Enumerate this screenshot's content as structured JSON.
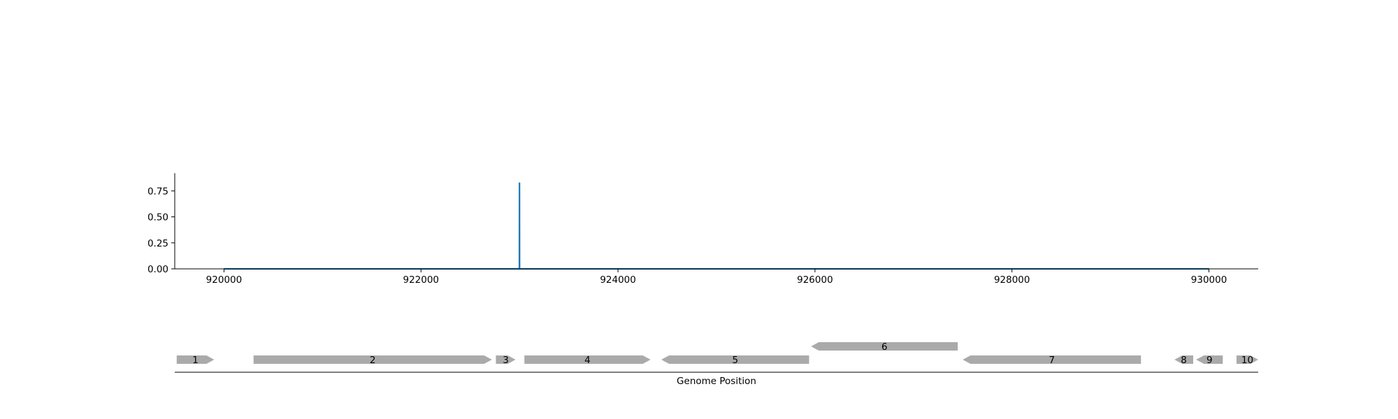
{
  "chart_data": [
    {
      "type": "line",
      "title": "",
      "xlabel": "",
      "ylabel": "",
      "xlim": [
        919500,
        930500
      ],
      "ylim": [
        0,
        0.92
      ],
      "x_ticks": [
        920000,
        922000,
        924000,
        926000,
        928000,
        930000
      ],
      "y_ticks": [
        0.0,
        0.25,
        0.5,
        0.75
      ],
      "y_tick_labels": [
        "0.00",
        "0.25",
        "0.50",
        "0.75"
      ],
      "x_tick_labels": [
        "920000",
        "922000",
        "924000",
        "926000",
        "928000",
        "930000"
      ],
      "grid": false,
      "color": "#1f77b4",
      "series": [
        {
          "x": [
            920000,
            922999,
            923000,
            923001,
            930000
          ],
          "y": [
            0,
            0,
            0.83,
            0,
            0
          ]
        }
      ]
    },
    {
      "type": "gene-track",
      "xlabel": "Genome Position",
      "xlim": [
        919500,
        930500
      ],
      "color": "#aaaaaa",
      "genes": [
        {
          "label": "1",
          "start": 919520,
          "end": 919900,
          "strand": "+",
          "row": 0
        },
        {
          "label": "2",
          "start": 920300,
          "end": 922720,
          "strand": "+",
          "row": 0
        },
        {
          "label": "3",
          "start": 922760,
          "end": 922960,
          "strand": "+",
          "row": 0
        },
        {
          "label": "4",
          "start": 923050,
          "end": 924330,
          "strand": "+",
          "row": 0
        },
        {
          "label": "5",
          "start": 924440,
          "end": 925940,
          "strand": "-",
          "row": 0
        },
        {
          "label": "6",
          "start": 925960,
          "end": 927450,
          "strand": "-",
          "row": 1
        },
        {
          "label": "7",
          "start": 927500,
          "end": 929310,
          "strand": "-",
          "row": 0
        },
        {
          "label": "8",
          "start": 929650,
          "end": 929840,
          "strand": "-",
          "row": 0
        },
        {
          "label": "9",
          "start": 929870,
          "end": 930140,
          "strand": "-",
          "row": 0
        },
        {
          "label": "10",
          "start": 930280,
          "end": 930500,
          "strand": "+",
          "row": 0
        }
      ]
    }
  ]
}
